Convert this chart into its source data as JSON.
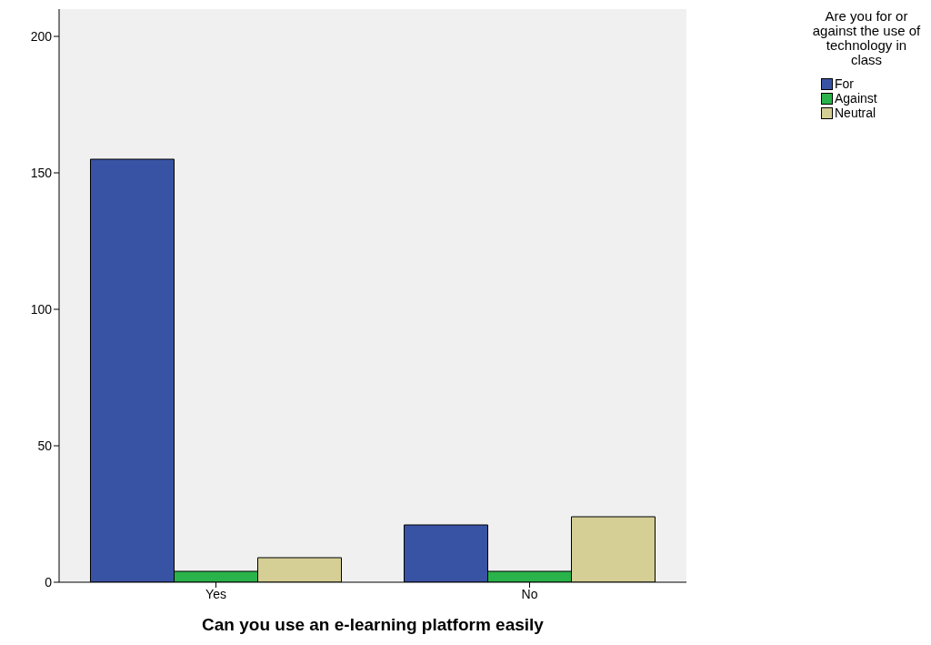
{
  "chart_data": {
    "type": "bar",
    "xlabel": "Can you use an e-learning platform easily",
    "legend_title": "Are you for or against the use of technology in class",
    "categories": [
      "Yes",
      "No"
    ],
    "series": [
      {
        "name": "For",
        "color": "#3953a4",
        "values": [
          155,
          21
        ]
      },
      {
        "name": "Against",
        "color": "#29b34a",
        "values": [
          4,
          4
        ]
      },
      {
        "name": "Neutral",
        "color": "#d5ce95",
        "values": [
          9,
          24
        ]
      }
    ],
    "ylim": [
      0,
      210
    ],
    "yticks": [
      0,
      50,
      100,
      150,
      200
    ],
    "grid": false,
    "legend": "top right"
  }
}
